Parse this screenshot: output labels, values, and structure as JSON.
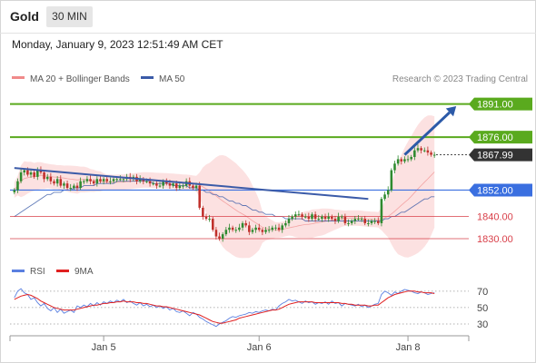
{
  "header": {
    "title": "Gold",
    "timeframe": "30 MIN"
  },
  "datetime": "Monday, January 9, 2023 12:51:49 AM CET",
  "legend": {
    "bb_label": "MA 20 + Bollinger Bands",
    "ma50_label": "MA 50",
    "copyright": "Research © 2023 Trading Central"
  },
  "rsi_legend": {
    "rsi_label": "RSI",
    "ma_label": "9MA"
  },
  "colors": {
    "bb_fill": "#f9c8c8",
    "bb_line": "#f08a8a",
    "ma50": "#3b5ba8",
    "resistance": "#5aaa1e",
    "support": "#d9404a",
    "pivot": "#3a6fe0",
    "current": "#333333",
    "candle_up": "#2f8a2f",
    "candle_down": "#c0302b",
    "rsi": "#5a7fe0",
    "rsi_ma": "#e02020"
  },
  "chart_data": [
    {
      "type": "candlestick",
      "title": "Gold",
      "ylim": [
        1823,
        1897
      ],
      "levels": [
        {
          "value": 1891.0,
          "label": "1891.00",
          "kind": "resistance"
        },
        {
          "value": 1876.0,
          "label": "1876.00",
          "kind": "resistance"
        },
        {
          "value": 1867.99,
          "label": "1867.99",
          "kind": "current"
        },
        {
          "value": 1852.0,
          "label": "1852.00",
          "kind": "pivot"
        },
        {
          "value": 1840.0,
          "label": "1840.00",
          "kind": "support"
        },
        {
          "value": 1830.0,
          "label": "1830.00",
          "kind": "support"
        }
      ],
      "xticks": [
        {
          "label": "Jan 5",
          "index": 27
        },
        {
          "label": "Jan 6",
          "index": 74
        },
        {
          "label": "Jan 8",
          "index": 119
        }
      ],
      "n_bars": 128,
      "closes": [
        1852,
        1856,
        1860,
        1861,
        1859,
        1860,
        1858,
        1861,
        1860,
        1857,
        1858,
        1856,
        1855,
        1857,
        1854,
        1855,
        1853,
        1853,
        1854,
        1853,
        1856,
        1856,
        1857,
        1856,
        1855,
        1857,
        1856,
        1857,
        1856,
        1856,
        1857,
        1857,
        1857,
        1857,
        1858,
        1857,
        1858,
        1856,
        1857,
        1856,
        1856,
        1855,
        1855,
        1854,
        1854,
        1856,
        1855,
        1854,
        1855,
        1853,
        1854,
        1854,
        1856,
        1854,
        1853,
        1854,
        1844,
        1840,
        1839,
        1839,
        1834,
        1831,
        1830,
        1832,
        1834,
        1835,
        1834,
        1834,
        1835,
        1837,
        1836,
        1833,
        1834,
        1835,
        1834,
        1833,
        1834,
        1834,
        1835,
        1835,
        1834,
        1836,
        1837,
        1839,
        1840,
        1841,
        1841,
        1840,
        1840,
        1839,
        1841,
        1839,
        1839,
        1840,
        1839,
        1840,
        1839,
        1838,
        1840,
        1840,
        1837,
        1837,
        1838,
        1839,
        1839,
        1839,
        1837,
        1837,
        1838,
        1838,
        1837,
        1848,
        1850,
        1852,
        1861,
        1864,
        1866,
        1865,
        1866,
        1866,
        1867,
        1870,
        1871,
        1870,
        1870,
        1869,
        1868,
        1868
      ],
      "ma50": [
        1840,
        1841,
        1842,
        1843,
        1844,
        1845,
        1846,
        1847,
        1848,
        1849,
        1850,
        1850,
        1851,
        1851,
        1851,
        1852,
        1852,
        1852,
        1853,
        1853,
        1853,
        1854,
        1854,
        1854,
        1854,
        1855,
        1855,
        1855,
        1855,
        1855,
        1855,
        1856,
        1856,
        1856,
        1856,
        1856,
        1856,
        1856,
        1856,
        1856,
        1856,
        1856,
        1855,
        1855,
        1855,
        1855,
        1855,
        1855,
        1854,
        1854,
        1854,
        1854,
        1854,
        1853,
        1853,
        1853,
        1852,
        1852,
        1851,
        1851,
        1850,
        1850,
        1849,
        1849,
        1848,
        1847,
        1847,
        1846,
        1846,
        1845,
        1845,
        1844,
        1843,
        1843,
        1842,
        1842,
        1841,
        1841,
        1841,
        1840,
        1840,
        1840,
        1839,
        1839,
        1839,
        1839,
        1839,
        1839,
        1838,
        1838,
        1838,
        1838,
        1838,
        1838,
        1838,
        1838,
        1838,
        1838,
        1838,
        1838,
        1838,
        1838,
        1838,
        1838,
        1838,
        1838,
        1838,
        1838,
        1838,
        1838,
        1838,
        1838,
        1839,
        1839,
        1840,
        1840,
        1841,
        1842,
        1842,
        1843,
        1844,
        1845,
        1846,
        1847,
        1848,
        1848,
        1849,
        1849
      ],
      "trendline": {
        "from": [
          0,
          1862
        ],
        "to": [
          107,
          1848
        ]
      },
      "projection": {
        "from": [
          118,
          1868
        ],
        "to": [
          127,
          1890
        ]
      }
    },
    {
      "type": "line",
      "title": "RSI",
      "ylim": [
        20,
        82
      ],
      "yticks": [
        70,
        50,
        30
      ],
      "series": [
        {
          "name": "RSI",
          "values": [
            62,
            70,
            73,
            68,
            66,
            60,
            62,
            56,
            52,
            55,
            49,
            46,
            50,
            44,
            48,
            43,
            45,
            47,
            44,
            52,
            50,
            53,
            51,
            55,
            52,
            56,
            53,
            57,
            55,
            58,
            56,
            59,
            57,
            60,
            56,
            58,
            55,
            53,
            56,
            52,
            54,
            51,
            53,
            50,
            52,
            49,
            51,
            47,
            49,
            45,
            44,
            46,
            43,
            40,
            44,
            42,
            38,
            36,
            33,
            31,
            29,
            27,
            30,
            32,
            34,
            37,
            39,
            38,
            40,
            41,
            42,
            44,
            43,
            45,
            44,
            46,
            47,
            46,
            48,
            47,
            52,
            55,
            57,
            60,
            58,
            59,
            57,
            55,
            58,
            56,
            57,
            54,
            56,
            55,
            57,
            54,
            58,
            55,
            56,
            52,
            55,
            54,
            53,
            52,
            54,
            51,
            53,
            50,
            52,
            54,
            55,
            66,
            70,
            68,
            65,
            69,
            67,
            70,
            72,
            71,
            70,
            68,
            67,
            69,
            68,
            66,
            67,
            68
          ]
        },
        {
          "name": "9MA",
          "values": [
            60,
            62,
            64,
            65,
            66,
            65,
            63,
            61,
            58,
            56,
            54,
            52,
            50,
            49,
            48,
            47,
            47,
            47,
            47,
            48,
            49,
            50,
            51,
            52,
            53,
            53,
            54,
            55,
            55,
            56,
            56,
            57,
            57,
            58,
            57,
            57,
            57,
            56,
            56,
            55,
            55,
            54,
            53,
            52,
            52,
            51,
            51,
            50,
            49,
            48,
            47,
            46,
            45,
            44,
            43,
            42,
            41,
            39,
            37,
            35,
            33,
            32,
            31,
            31,
            32,
            33,
            34,
            35,
            37,
            38,
            39,
            40,
            41,
            42,
            43,
            44,
            45,
            46,
            47,
            47,
            48,
            50,
            52,
            54,
            55,
            56,
            57,
            57,
            57,
            57,
            57,
            56,
            56,
            56,
            56,
            56,
            56,
            56,
            56,
            55,
            55,
            54,
            54,
            53,
            53,
            53,
            53,
            52,
            52,
            53,
            53,
            56,
            59,
            62,
            64,
            66,
            67,
            68,
            69,
            70,
            70,
            70,
            69,
            69,
            68,
            68,
            68,
            67
          ]
        }
      ]
    }
  ]
}
